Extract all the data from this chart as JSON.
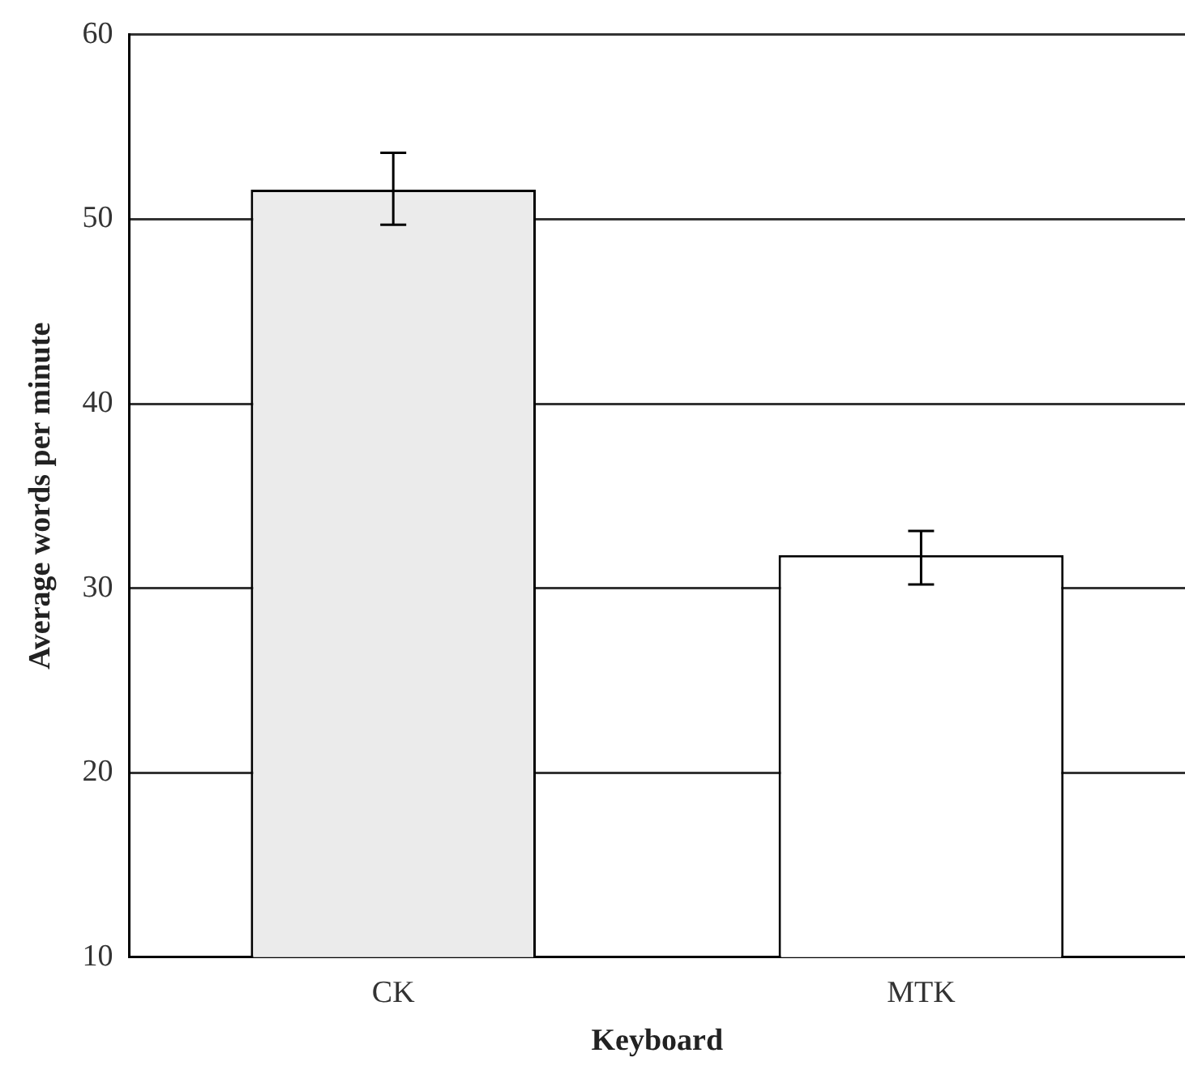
{
  "chart_data": {
    "type": "bar",
    "xlabel": "Keyboard",
    "ylabel": "Average words per minute",
    "categories": [
      "CK",
      "MTK"
    ],
    "values": [
      51.6,
      31.8
    ],
    "colors": [
      "#ebebeb",
      "#ffffff"
    ],
    "errors": [
      [
        49.7,
        53.6
      ],
      [
        30.2,
        33.1
      ]
    ],
    "ylim": [
      10,
      60
    ],
    "yticks": [
      10,
      20,
      30,
      40,
      50,
      60
    ],
    "grid": "y"
  }
}
